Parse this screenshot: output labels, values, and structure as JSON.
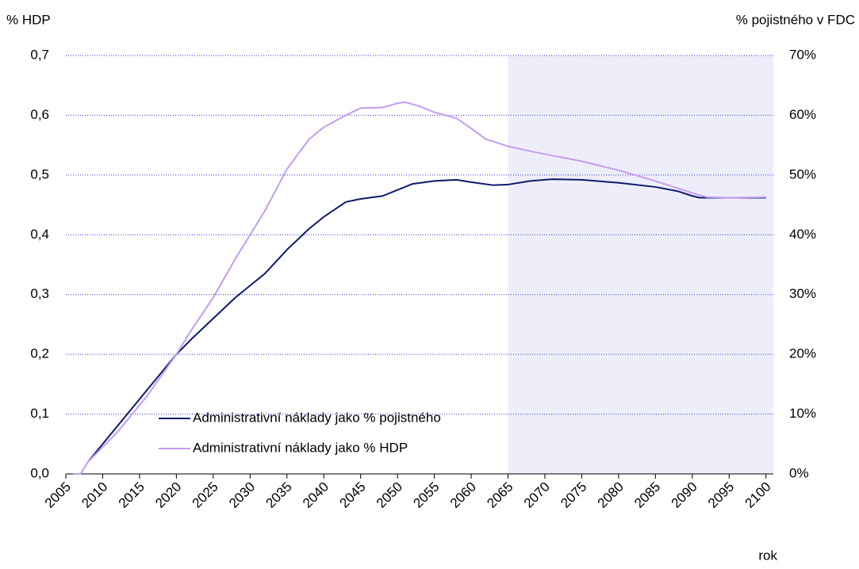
{
  "chart_data": {
    "type": "line",
    "ylabel": "% HDP",
    "y2label": "% pojistného v FDC",
    "xlabel": "rok",
    "xlim": [
      2005,
      2101
    ],
    "xticks": [
      2005,
      2010,
      2015,
      2020,
      2025,
      2030,
      2035,
      2040,
      2045,
      2050,
      2055,
      2060,
      2065,
      2070,
      2075,
      2080,
      2085,
      2090,
      2095,
      2100
    ],
    "ylim": [
      0,
      0.7
    ],
    "yticks": [
      {
        "value": 0,
        "label": "0,0"
      },
      {
        "value": 0.1,
        "label": "0,1"
      },
      {
        "value": 0.2,
        "label": "0,2"
      },
      {
        "value": 0.3,
        "label": "0,3"
      },
      {
        "value": 0.4,
        "label": "0,4"
      },
      {
        "value": 0.5,
        "label": "0,5"
      },
      {
        "value": 0.6,
        "label": "0,6"
      },
      {
        "value": 0.7,
        "label": "0,7"
      }
    ],
    "y2lim": [
      0,
      70
    ],
    "y2ticks": [
      {
        "value": 0,
        "label": "0%"
      },
      {
        "value": 10,
        "label": "10%"
      },
      {
        "value": 20,
        "label": "20%"
      },
      {
        "value": 30,
        "label": "30%"
      },
      {
        "value": 40,
        "label": "40%"
      },
      {
        "value": 50,
        "label": "50%"
      },
      {
        "value": 60,
        "label": "60%"
      },
      {
        "value": 70,
        "label": "70%"
      }
    ],
    "grid": true,
    "shade": [
      2065,
      2101
    ],
    "shade_color": "#eeeefb",
    "series": [
      {
        "name": "Administrativní náklady jako % pojistného",
        "color": "#0b1a6e",
        "axis": "y2",
        "x": [
          2008,
          2010,
          2012,
          2014,
          2016,
          2018,
          2020,
          2022,
          2025,
          2028,
          2030,
          2032,
          2035,
          2038,
          2040,
          2043,
          2045,
          2048,
          2050,
          2052,
          2055,
          2058,
          2060,
          2063,
          2065,
          2068,
          2071,
          2075,
          2080,
          2085,
          2088,
          2090,
          2091,
          2095,
          2100
        ],
        "values": [
          2,
          5,
          8,
          11,
          14,
          17,
          20,
          22.5,
          26,
          29.5,
          31.5,
          33.5,
          37.5,
          41,
          43,
          45.5,
          46,
          46.5,
          47.5,
          48.5,
          49,
          49.2,
          48.8,
          48.3,
          48.4,
          49,
          49.3,
          49.2,
          48.7,
          48,
          47.3,
          46.5,
          46.2,
          46.2,
          46.2
        ]
      },
      {
        "name": "Administrativní náklady jako % HDP",
        "color": "#c49cf2",
        "x": [
          2006,
          2007,
          2008,
          2010,
          2012,
          2014,
          2016,
          2018,
          2020,
          2022,
          2025,
          2028,
          2030,
          2032,
          2035,
          2038,
          2040,
          2043,
          2045,
          2048,
          2050,
          2051,
          2053,
          2055,
          2058,
          2060,
          2062,
          2065,
          2068,
          2070,
          2075,
          2080,
          2085,
          2090,
          2092,
          2095,
          2100
        ],
        "values": [
          0,
          0,
          0.02,
          0.045,
          0.07,
          0.1,
          0.13,
          0.165,
          0.2,
          0.24,
          0.295,
          0.36,
          0.4,
          0.44,
          0.51,
          0.56,
          0.58,
          0.6,
          0.612,
          0.613,
          0.62,
          0.622,
          0.615,
          0.605,
          0.595,
          0.578,
          0.56,
          0.548,
          0.54,
          0.535,
          0.523,
          0.508,
          0.49,
          0.47,
          0.463,
          0.462,
          0.463
        ]
      }
    ]
  }
}
